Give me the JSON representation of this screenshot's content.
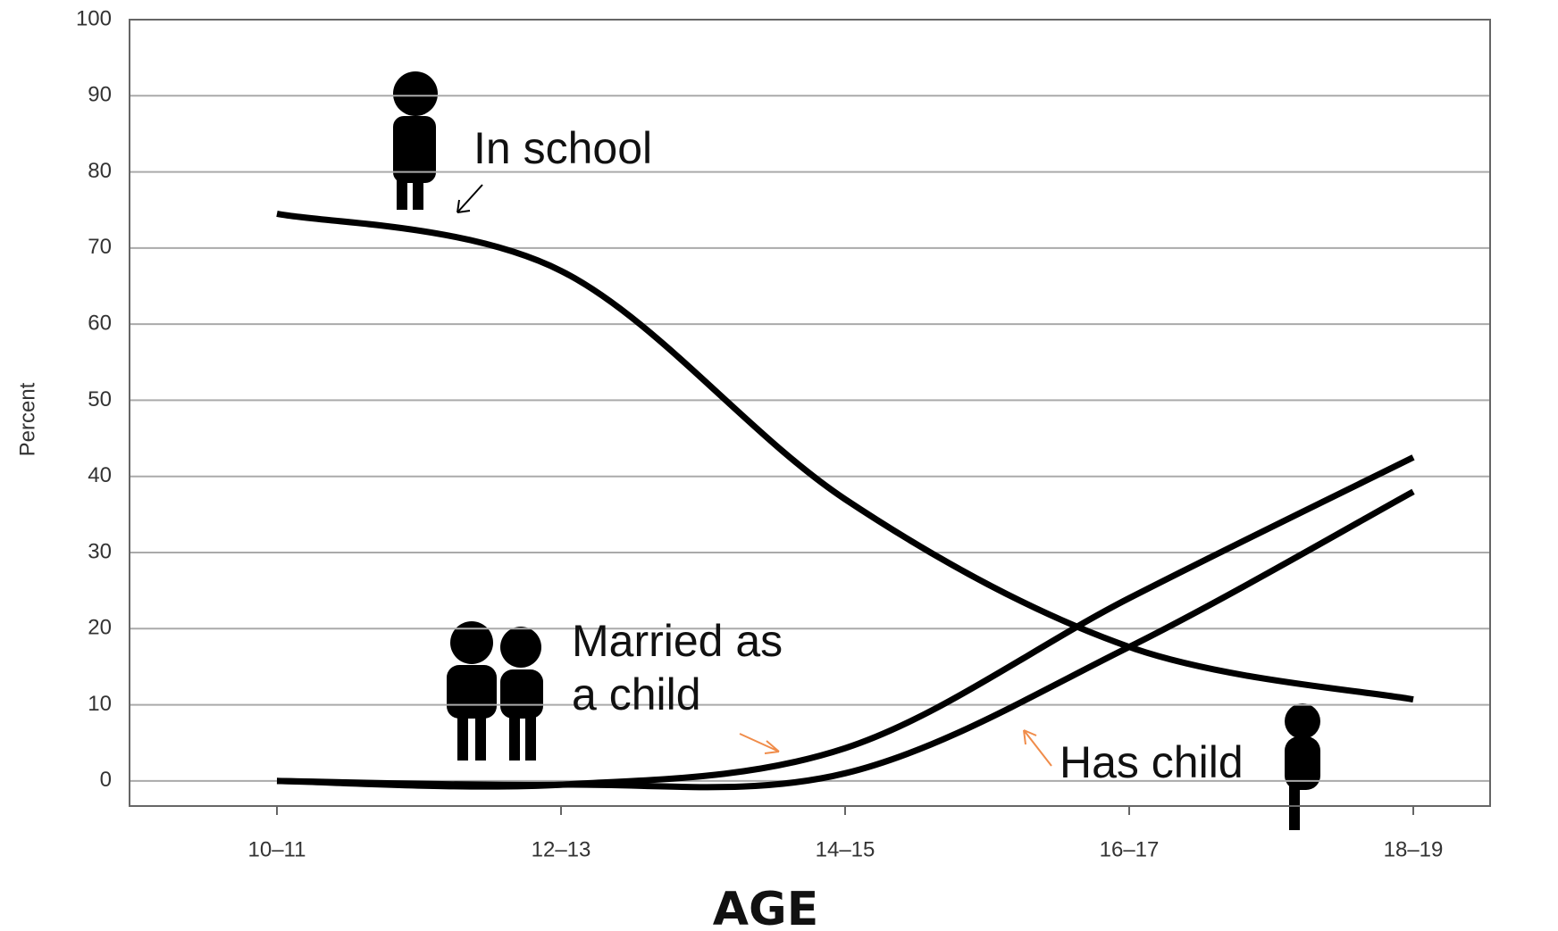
{
  "chart_data": {
    "type": "line",
    "x_label": "AGE",
    "y_label": "Percent",
    "categories": [
      "10–11",
      "12–13",
      "14–15",
      "16–17",
      "18–19"
    ],
    "series": [
      {
        "name": "In school",
        "color": "#000000",
        "values": [
          74.5,
          67,
          37,
          17.6,
          10.7
        ]
      },
      {
        "name": "Married as a child",
        "color": "#000000",
        "values": [
          0,
          -0.5,
          4.3,
          24,
          42.5
        ]
      },
      {
        "name": "Has child",
        "color": "#000000",
        "values": [
          0,
          -0.5,
          1,
          17.6,
          38
        ]
      }
    ],
    "ylim": [
      -3.3,
      100
    ],
    "yticks": [
      0,
      10,
      20,
      30,
      40,
      50,
      60,
      70,
      80,
      90,
      100
    ],
    "grid": true
  }
}
